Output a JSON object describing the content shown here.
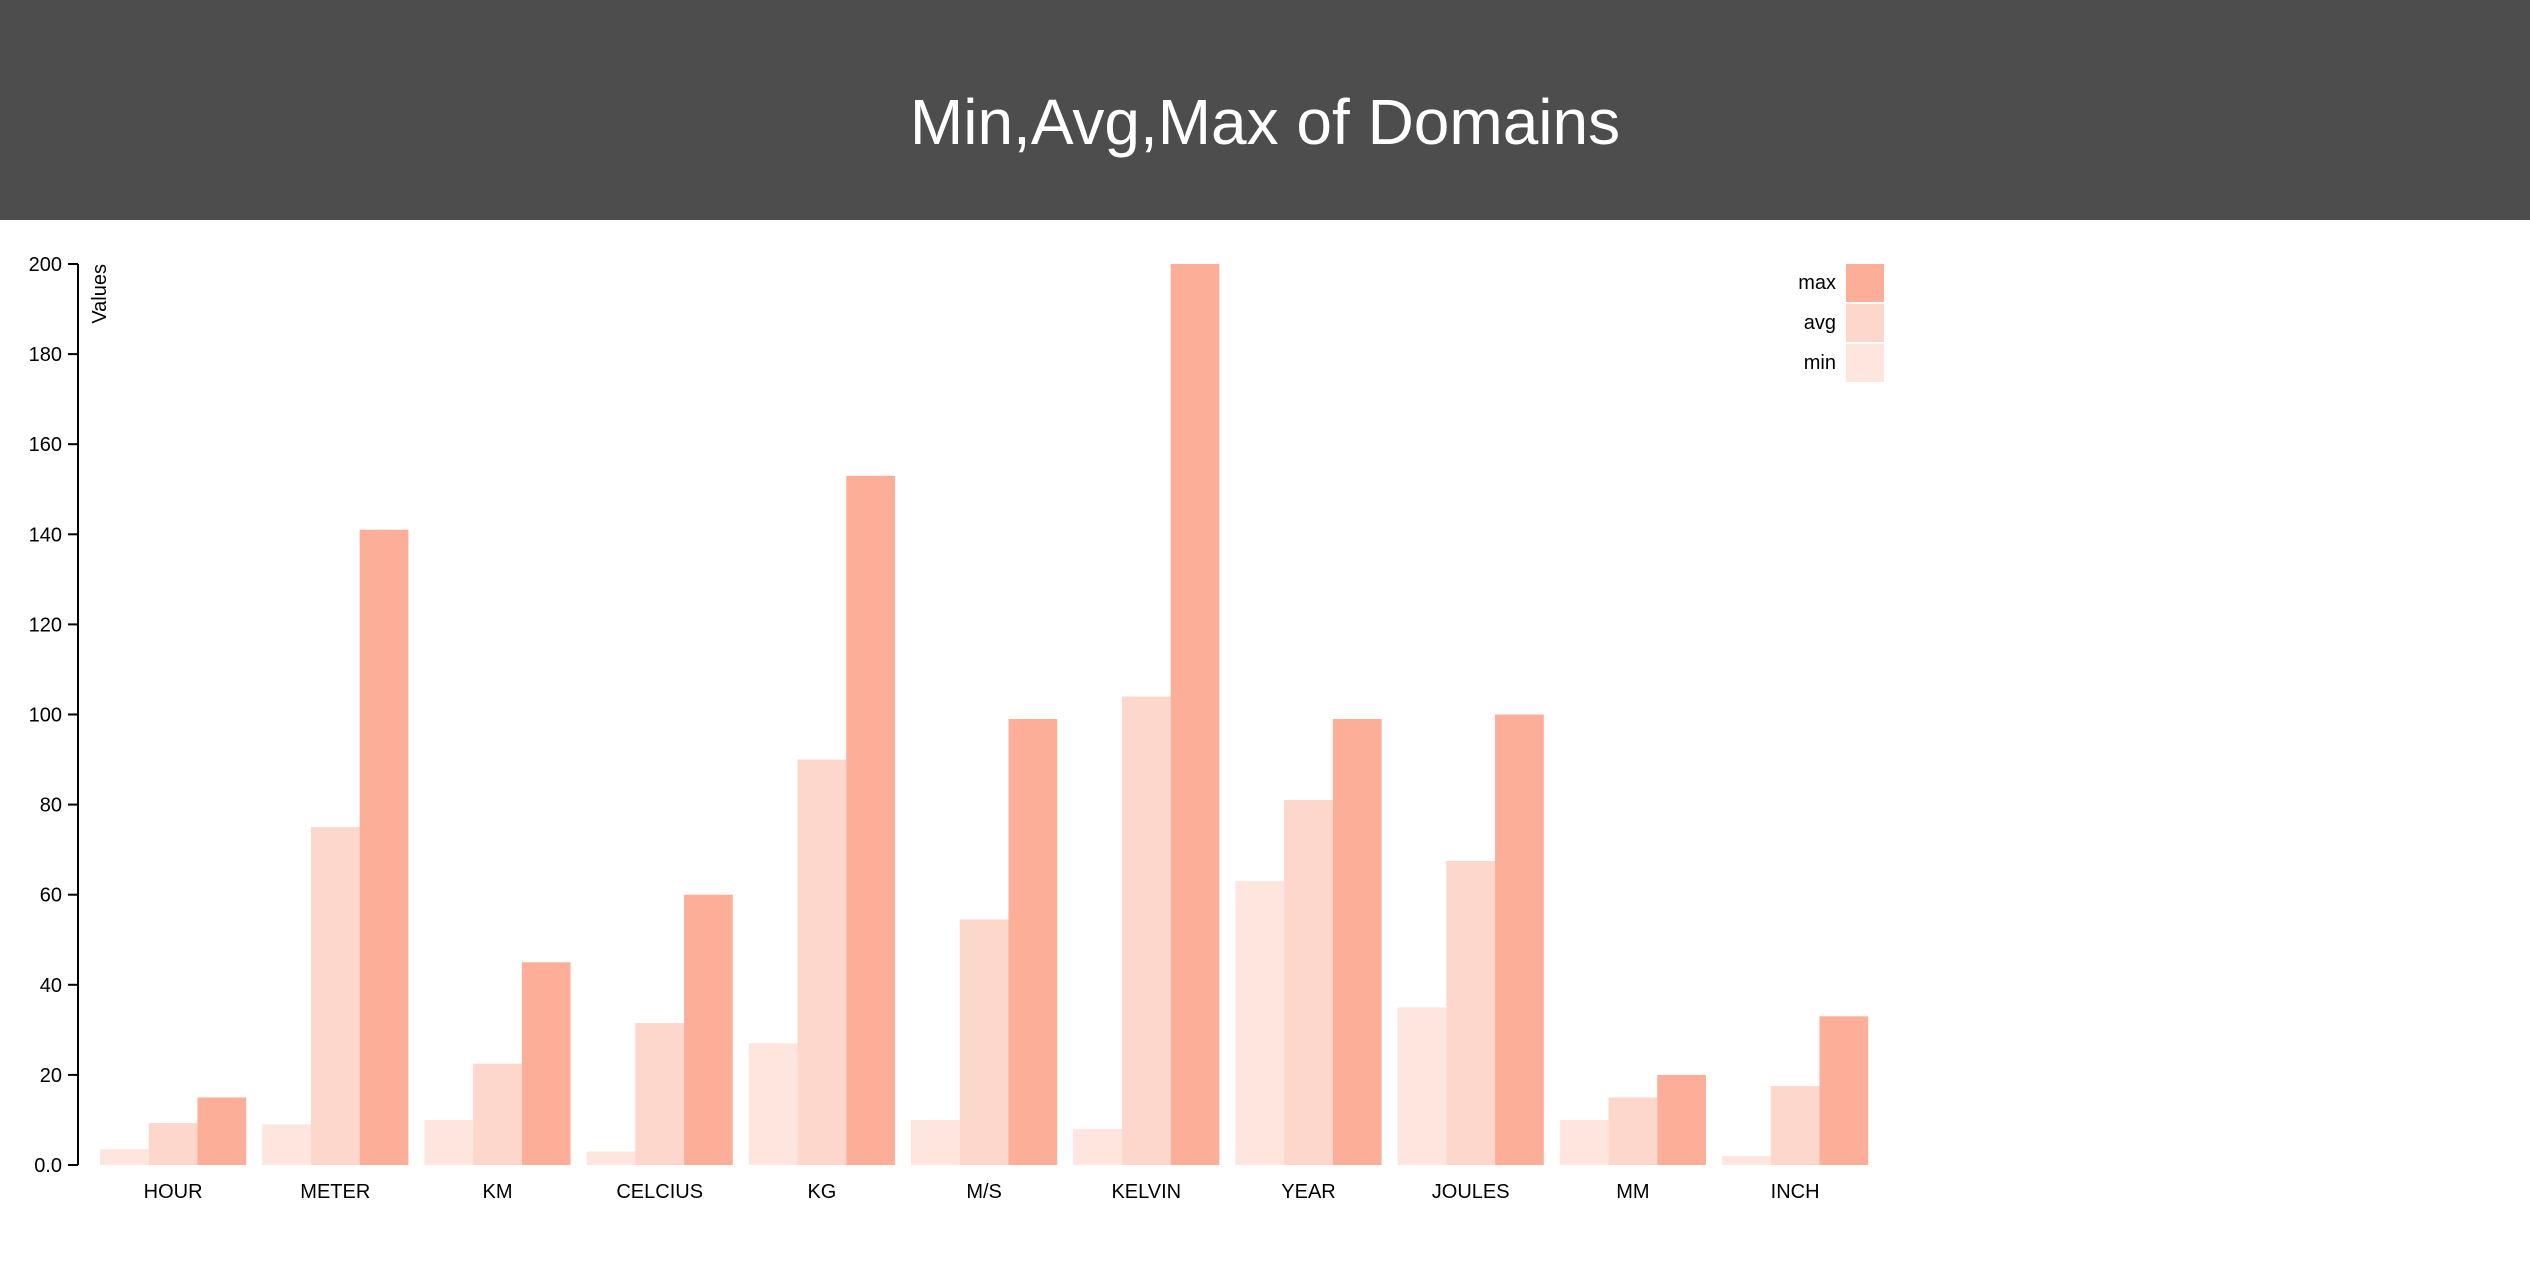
{
  "header": {
    "title": "Min,Avg,Max of Domains"
  },
  "chart_data": {
    "type": "bar",
    "ylabel": "Values",
    "xlabel": "",
    "ylim": [
      0,
      200
    ],
    "yticks": [
      "0.0",
      "20",
      "40",
      "60",
      "80",
      "100",
      "120",
      "140",
      "160",
      "180",
      "200"
    ],
    "grid": false,
    "legend_position": "top-right",
    "categories": [
      "HOUR",
      "METER",
      "KM",
      "CELCIUS",
      "KG",
      "M/S",
      "KELVIN",
      "YEAR",
      "JOULES",
      "MM",
      "INCH"
    ],
    "series": [
      {
        "name": "min",
        "color": "#fee5de",
        "values": [
          3.5,
          9,
          10,
          3,
          27,
          10,
          8,
          63,
          35,
          10,
          2
        ]
      },
      {
        "name": "avg",
        "color": "#fdd6cc",
        "values": [
          9.3,
          75,
          22.5,
          31.5,
          90,
          54.5,
          104,
          81,
          67.5,
          15,
          17.5
        ]
      },
      {
        "name": "max",
        "color": "#fcae98",
        "values": [
          15,
          141,
          45,
          60,
          153,
          99,
          200,
          99,
          100,
          20,
          33
        ]
      }
    ],
    "legend_order": [
      "max",
      "avg",
      "min"
    ]
  }
}
